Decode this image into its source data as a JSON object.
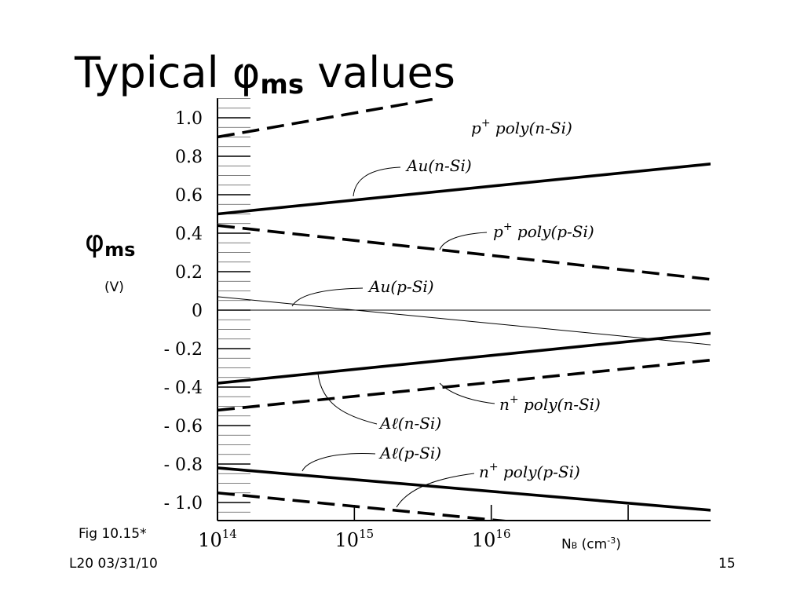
{
  "slide": {
    "title_prefix": "Typical ",
    "title_symbol": "φ",
    "title_sub": "ms",
    "title_suffix": " values",
    "ylabel_symbol": "φ",
    "ylabel_sub": "ms",
    "yunit": "(V)",
    "caption": "Fig 10.15*",
    "xtitle_main": "N",
    "xtitle_sub": "B",
    "xtitle_unit_pre": " (cm",
    "xtitle_unit_sup": "-3",
    "xtitle_unit_post": ")",
    "footer_left": "L20 03/31/10",
    "page_number": "15"
  },
  "chart_data": {
    "type": "line",
    "x_scale": "log",
    "x_ticks": [
      {
        "value": 100000000000000.0,
        "base": "10",
        "exp": "14"
      },
      {
        "value": 1000000000000000.0,
        "base": "10",
        "exp": "15"
      },
      {
        "value": 1e+16,
        "base": "10",
        "exp": "16"
      }
    ],
    "xlim": [
      100000000000000.0,
      4e+17
    ],
    "ylim": [
      -1.1,
      1.1
    ],
    "y_ticks": [
      {
        "value": 1.0,
        "label": "1.0"
      },
      {
        "value": 0.8,
        "label": "0.8"
      },
      {
        "value": 0.6,
        "label": "0.6"
      },
      {
        "value": 0.4,
        "label": "0.4"
      },
      {
        "value": 0.2,
        "label": "0.2"
      },
      {
        "value": 0.0,
        "label": "0"
      },
      {
        "value": -0.2,
        "label": "- 0.2"
      },
      {
        "value": -0.4,
        "label": "- 0.4"
      },
      {
        "value": -0.6,
        "label": "- 0.6"
      },
      {
        "value": -0.8,
        "label": "- 0.8"
      },
      {
        "value": -1.0,
        "label": "- 1.0"
      }
    ],
    "series": [
      {
        "name": "p+ poly(n-Si)",
        "label_main": "p",
        "label_sup": "+",
        "label_rest": " poly(n-Si)",
        "style": "dashed",
        "weight": "bold",
        "x": [
          100000000000000.0,
          4000000000000000.0
        ],
        "y": [
          0.9,
          1.1
        ]
      },
      {
        "name": "Au(n-Si)",
        "label_main": "Au(n-Si)",
        "label_sup": "",
        "label_rest": "",
        "style": "solid",
        "weight": "bold",
        "x": [
          100000000000000.0,
          4e+17
        ],
        "y": [
          0.5,
          0.76
        ]
      },
      {
        "name": "p+ poly(p-Si)",
        "label_main": "p",
        "label_sup": "+",
        "label_rest": " poly(p-Si)",
        "style": "dashed",
        "weight": "bold",
        "x": [
          100000000000000.0,
          4e+17
        ],
        "y": [
          0.44,
          0.16
        ]
      },
      {
        "name": "Au(p-Si)",
        "label_main": "Au(p-Si)",
        "label_sup": "",
        "label_rest": "",
        "style": "solid",
        "weight": "thin",
        "x": [
          100000000000000.0,
          4e+17
        ],
        "y": [
          0.07,
          -0.18
        ]
      },
      {
        "name": "Aℓ(n-Si)",
        "label_main": "Aℓ(n-Si)",
        "label_sup": "",
        "label_rest": "",
        "style": "solid",
        "weight": "bold",
        "x": [
          100000000000000.0,
          4e+17
        ],
        "y": [
          -0.38,
          -0.12
        ]
      },
      {
        "name": "n+ poly(n-Si)",
        "label_main": "n",
        "label_sup": "+",
        "label_rest": " poly(n-Si)",
        "style": "dashed",
        "weight": "bold",
        "x": [
          100000000000000.0,
          4e+17
        ],
        "y": [
          -0.52,
          -0.26
        ]
      },
      {
        "name": "Aℓ(p-Si)",
        "label_main": "Aℓ(p-Si)",
        "label_sup": "",
        "label_rest": "",
        "style": "solid",
        "weight": "bold",
        "x": [
          100000000000000.0,
          4e+17
        ],
        "y": [
          -0.82,
          -1.04
        ]
      },
      {
        "name": "n+ poly(p-Si)",
        "label_main": "n",
        "label_sup": "+",
        "label_rest": " poly(p-Si)",
        "style": "dashed",
        "weight": "bold",
        "x": [
          100000000000000.0,
          1.4e+16
        ],
        "y": [
          -0.95,
          -1.1
        ]
      }
    ]
  }
}
